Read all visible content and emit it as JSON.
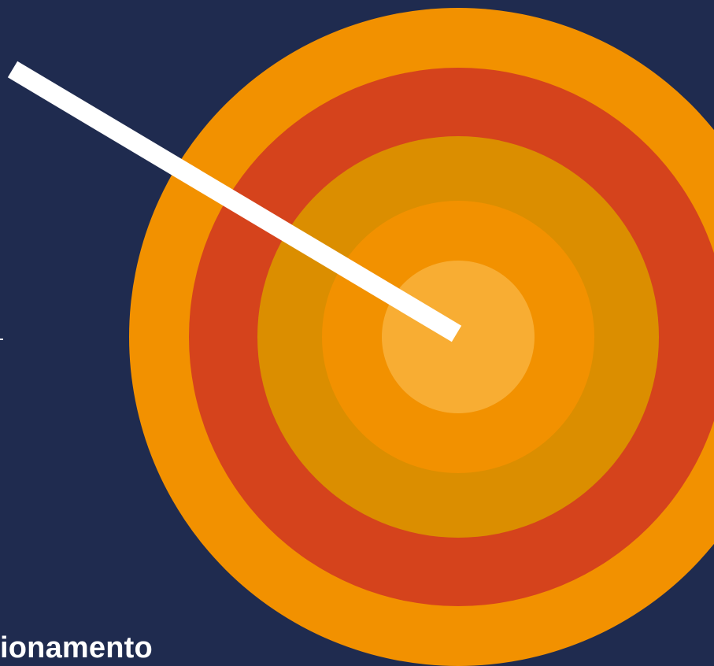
{
  "caption": {
    "text": "ionamento"
  },
  "target": {
    "icon": "target-icon",
    "ring_colors": [
      "#f29100",
      "#d5431c",
      "#db8e00",
      "#f29100",
      "#f8ad33"
    ]
  },
  "arrow": {
    "icon": "arrow-icon",
    "color": "#ffffff"
  },
  "background_color": "#1f2b4f"
}
